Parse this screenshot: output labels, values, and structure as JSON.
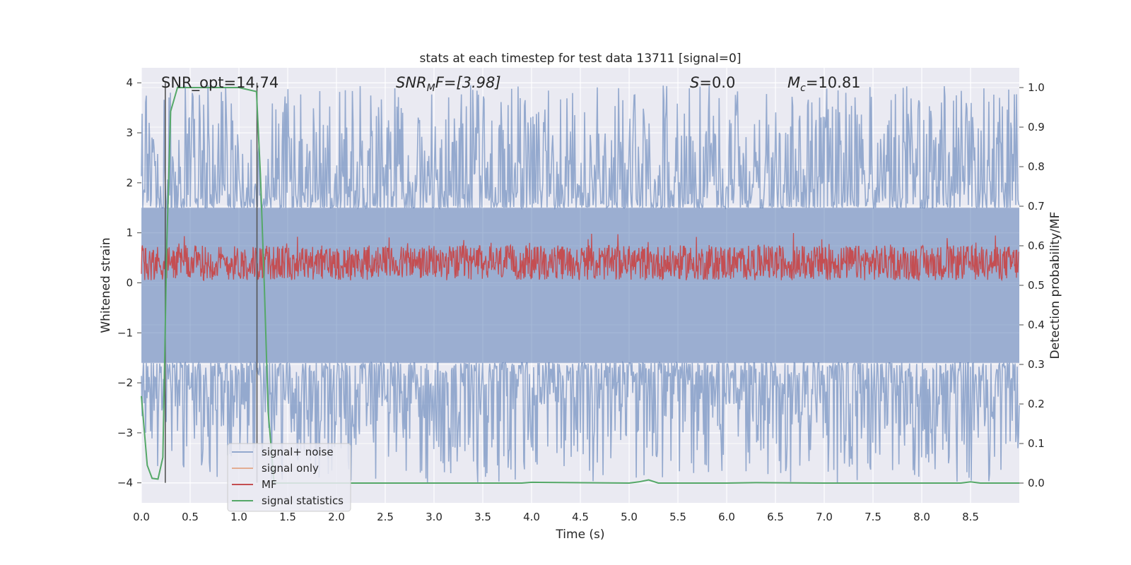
{
  "chart_data": {
    "type": "line",
    "title": "stats at each timestep for test data 13711 [signal=0]",
    "xlabel": "Time (s)",
    "ylabel": "Whitened strain",
    "y2label": "Detection probability/MF",
    "xlim": [
      0.0,
      9.0
    ],
    "ylim": [
      -4.4,
      4.3
    ],
    "y2lim": [
      -0.05,
      1.05
    ],
    "grid": true,
    "legend_position": "lower-left",
    "x_ticks": [
      "0.0",
      "0.5",
      "1.0",
      "1.5",
      "2.0",
      "2.5",
      "3.0",
      "3.5",
      "4.0",
      "4.5",
      "5.0",
      "5.5",
      "6.0",
      "6.5",
      "7.0",
      "7.5",
      "8.0",
      "8.5"
    ],
    "y_ticks": [
      "−4",
      "−3",
      "−2",
      "−1",
      "0",
      "1",
      "2",
      "3",
      "4"
    ],
    "y2_ticks": [
      "0.0",
      "0.1",
      "0.2",
      "0.3",
      "0.4",
      "0.5",
      "0.6",
      "0.7",
      "0.8",
      "0.9",
      "1.0"
    ],
    "annotations": {
      "snr_opt": "SNR_opt=14.74",
      "snr_mf_base": "SNR",
      "snr_mf_sub": "M",
      "snr_mf_rest": "F=[3.98]",
      "s_base": "S",
      "s_rest": "=0.0",
      "mc_base": "M",
      "mc_sub": "c",
      "mc_rest": "=10.81"
    },
    "colors": {
      "signal_noise": "#4c72b0",
      "signal_only": "#dd8452",
      "mf": "#c44e52",
      "signal_statistics": "#55a868",
      "markers": "#555555",
      "plot_bg": "#eaeaf2",
      "grid": "#ffffff"
    },
    "markers_x": [
      0.245,
      1.185
    ],
    "series": [
      {
        "name": "signal+ noise",
        "axis": "left",
        "style": "dense-noise",
        "envelope_upper": {
          "baseline": 1.5,
          "peak_max": 3.95
        },
        "envelope_lower": {
          "baseline": -1.6,
          "peak_min": -4.0
        }
      },
      {
        "name": "signal only",
        "axis": "left",
        "values": []
      },
      {
        "name": "MF",
        "axis": "left",
        "style": "dense-noise",
        "band": [
          0.05,
          0.75
        ],
        "peak_max": 1.0
      },
      {
        "name": "signal statistics",
        "axis": "right",
        "x": [
          0.0,
          0.06,
          0.11,
          0.17,
          0.22,
          0.26,
          0.3,
          0.37,
          0.45,
          0.6,
          0.8,
          1.0,
          1.18,
          1.22,
          1.26,
          1.3,
          1.36,
          1.4,
          2.0,
          3.0,
          3.9,
          4.0,
          5.0,
          5.1,
          5.2,
          5.3,
          6.0,
          6.3,
          7.0,
          8.0,
          8.4,
          8.5,
          8.6,
          9.0
        ],
        "values": [
          0.22,
          0.045,
          0.012,
          0.01,
          0.065,
          0.6,
          0.94,
          1.0,
          1.0,
          1.0,
          1.0,
          1.0,
          0.99,
          0.78,
          0.5,
          0.18,
          0.0,
          0.0,
          0.0,
          0.0,
          0.0,
          0.002,
          0.0,
          0.003,
          0.008,
          0.0,
          0.0,
          0.001,
          0.0,
          0.0,
          0.0,
          0.003,
          0.0,
          0.0
        ]
      }
    ]
  }
}
